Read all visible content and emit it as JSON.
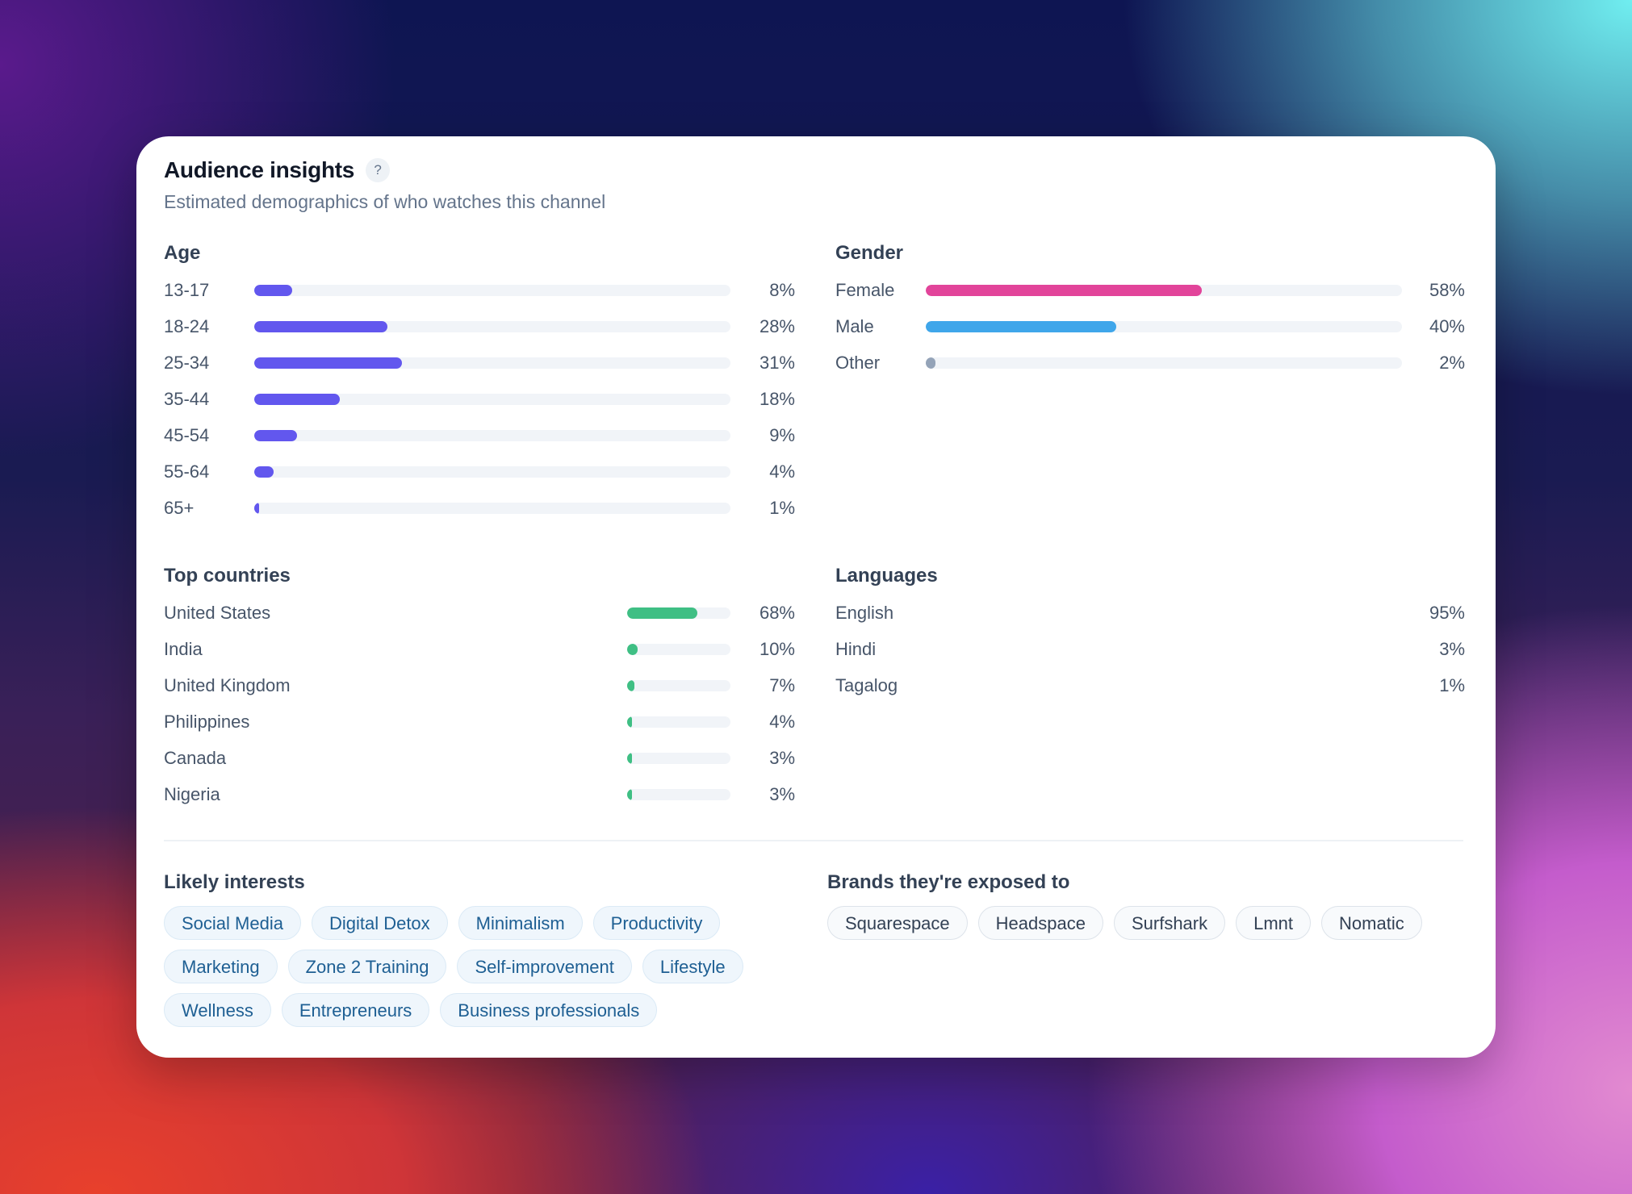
{
  "header": {
    "title": "Audience insights",
    "help_glyph": "?",
    "subtitle": "Estimated demographics of who watches this channel"
  },
  "colors": {
    "age": "#6257ee",
    "female": "#e2449a",
    "male": "#3fa6ea",
    "other": "#94a3b8",
    "countries": "#3fbf84",
    "track": "#f1f4f8"
  },
  "age": {
    "title": "Age",
    "items": [
      {
        "label": "13-17",
        "value": "8%",
        "pct": 8
      },
      {
        "label": "18-24",
        "value": "28%",
        "pct": 28
      },
      {
        "label": "25-34",
        "value": "31%",
        "pct": 31
      },
      {
        "label": "35-44",
        "value": "18%",
        "pct": 18
      },
      {
        "label": "45-54",
        "value": "9%",
        "pct": 9
      },
      {
        "label": "55-64",
        "value": "4%",
        "pct": 4
      },
      {
        "label": "65+",
        "value": "1%",
        "pct": 1
      }
    ]
  },
  "gender": {
    "title": "Gender",
    "items": [
      {
        "label": "Female",
        "value": "58%",
        "pct": 58,
        "color": "#e2449a"
      },
      {
        "label": "Male",
        "value": "40%",
        "pct": 40,
        "color": "#3fa6ea"
      },
      {
        "label": "Other",
        "value": "2%",
        "pct": 2,
        "color": "#94a3b8"
      }
    ]
  },
  "countries": {
    "title": "Top countries",
    "items": [
      {
        "label": "United States",
        "value": "68%",
        "pct": 68
      },
      {
        "label": "India",
        "value": "10%",
        "pct": 10
      },
      {
        "label": "United Kingdom",
        "value": "7%",
        "pct": 7
      },
      {
        "label": "Philippines",
        "value": "4%",
        "pct": 4
      },
      {
        "label": "Canada",
        "value": "3%",
        "pct": 3
      },
      {
        "label": "Nigeria",
        "value": "3%",
        "pct": 3
      }
    ]
  },
  "languages": {
    "title": "Languages",
    "items": [
      {
        "label": "English",
        "value": "95%"
      },
      {
        "label": "Hindi",
        "value": "3%"
      },
      {
        "label": "Tagalog",
        "value": "1%"
      }
    ]
  },
  "interests": {
    "title": "Likely interests",
    "items": [
      "Social Media",
      "Digital Detox",
      "Minimalism",
      "Productivity",
      "Marketing",
      "Zone 2 Training",
      "Self-improvement",
      "Lifestyle",
      "Wellness",
      "Entrepreneurs",
      "Business professionals"
    ]
  },
  "brands": {
    "title": "Brands they're exposed to",
    "items": [
      "Squarespace",
      "Headspace",
      "Surfshark",
      "Lmnt",
      "Nomatic"
    ]
  }
}
